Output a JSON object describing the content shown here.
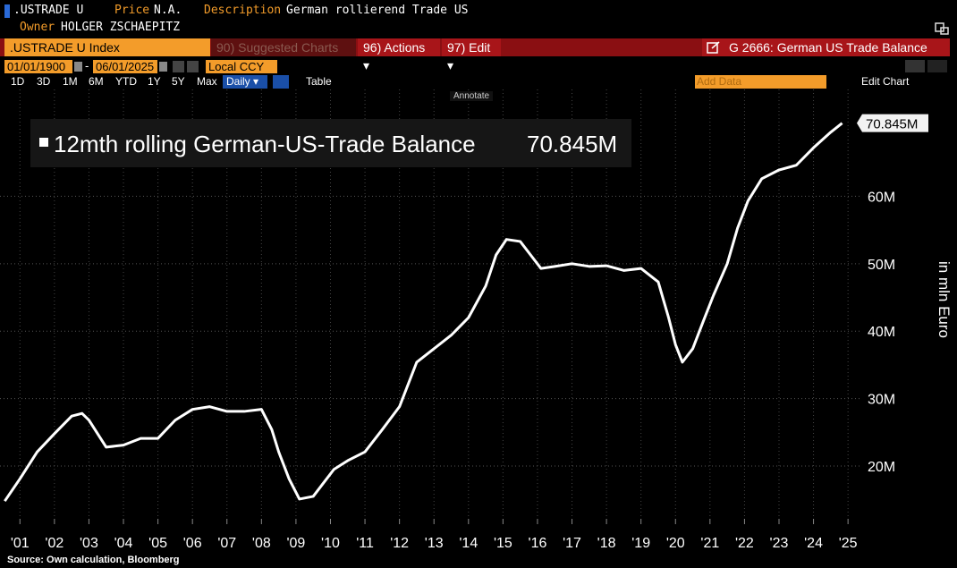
{
  "ui": {
    "ticker": ".USTRADE U",
    "price_label": "Price",
    "price": "N.A.",
    "description_label": "Description",
    "description": "German rollierend Trade US",
    "owner_label": "Owner",
    "owner": "HOLGER ZSCHAEPITZ",
    "security": ".USTRADE U Index",
    "suggested": "90) Suggested Charts",
    "actions": "96) Actions ▾",
    "edit": "97) Edit ▾",
    "chart_id": "G 2666: German US Trade Balance",
    "start_date": "01/01/1900",
    "date_sep": "-",
    "end_date": "06/01/2025",
    "currency": "Local CCY",
    "periods": [
      "1D",
      "3D",
      "1M",
      "6M",
      "YTD",
      "1Y",
      "5Y",
      "Max"
    ],
    "frequency": "Daily ▾",
    "table": "Table",
    "add_data": "Add Data",
    "edit_chart": "Edit Chart",
    "annotate": "Annotate"
  },
  "chart_data": {
    "type": "line",
    "ylabel": "in mln Euro",
    "source": "Source: Own calculation, Bloomberg",
    "x": [
      2001.06,
      2001.5,
      2002.0,
      2002.5,
      2003.0,
      2003.3,
      2003.5,
      2004.0,
      2004.5,
      2005.0,
      2005.5,
      2006.0,
      2006.5,
      2007.0,
      2007.5,
      2008.0,
      2008.5,
      2008.8,
      2009.0,
      2009.3,
      2009.6,
      2010.0,
      2010.3,
      2010.6,
      2011.0,
      2011.5,
      2012.0,
      2012.5,
      2013.0,
      2013.5,
      2014.0,
      2014.5,
      2015.0,
      2015.3,
      2015.6,
      2016.0,
      2016.3,
      2016.6,
      2017.0,
      2017.5,
      2018.0,
      2018.5,
      2019.0,
      2019.5,
      2020.0,
      2020.3,
      2020.5,
      2020.7,
      2021.0,
      2021.3,
      2021.6,
      2022.0,
      2022.3,
      2022.6,
      2023.0,
      2023.5,
      2024.0,
      2024.5,
      2025.0,
      2025.33
    ],
    "series": [
      {
        "name": "12mth rolling German-US-Trade Balance",
        "color": "#ffffff",
        "values": [
          14.8,
          18.1,
          22.1,
          24.8,
          27.4,
          27.8,
          26.8,
          22.8,
          23.1,
          24.1,
          24.1,
          26.8,
          28.4,
          28.8,
          28.1,
          28.1,
          28.4,
          25.4,
          22.1,
          18.1,
          15.1,
          15.5,
          17.5,
          19.5,
          20.8,
          22.1,
          25.4,
          28.8,
          35.4,
          37.4,
          39.4,
          42.0,
          46.7,
          51.3,
          53.6,
          53.3,
          51.3,
          49.3,
          49.6,
          50.0,
          49.6,
          49.7,
          49.0,
          49.3,
          47.3,
          42.0,
          38.0,
          35.4,
          37.4,
          41.4,
          45.3,
          50.0,
          55.3,
          59.3,
          62.6,
          63.9,
          64.6,
          67.2,
          69.5,
          70.845
        ],
        "value_labels": [
          null,
          null,
          null,
          null,
          null,
          null,
          null,
          null,
          null,
          null,
          null,
          null,
          null,
          null,
          null,
          null,
          null,
          null,
          null,
          null,
          null,
          null,
          null,
          null,
          null,
          null,
          null,
          null,
          null,
          null,
          null,
          null,
          null,
          null,
          null,
          null,
          null,
          null,
          null,
          null,
          null,
          null,
          null,
          null,
          null,
          null,
          null,
          null,
          null,
          null,
          null,
          null,
          null,
          null,
          null,
          null,
          null,
          null,
          null,
          "70.845M"
        ]
      }
    ],
    "xlim": [
      2001,
      2025.6
    ],
    "ylim": [
      12.4,
      75.8
    ],
    "xticks": [
      {
        "value": 2001.5,
        "label": "'01"
      },
      {
        "value": 2002.5,
        "label": "'02"
      },
      {
        "value": 2003.5,
        "label": "'03"
      },
      {
        "value": 2004.5,
        "label": "'04"
      },
      {
        "value": 2005.5,
        "label": "'05"
      },
      {
        "value": 2006.5,
        "label": "'06"
      },
      {
        "value": 2007.5,
        "label": "'07"
      },
      {
        "value": 2008.5,
        "label": "'08"
      },
      {
        "value": 2009.5,
        "label": "'09"
      },
      {
        "value": 2010.5,
        "label": "'10"
      },
      {
        "value": 2011.5,
        "label": "'11"
      },
      {
        "value": 2012.5,
        "label": "'12"
      },
      {
        "value": 2013.5,
        "label": "'13"
      },
      {
        "value": 2014.5,
        "label": "'14"
      },
      {
        "value": 2015.5,
        "label": "'15"
      },
      {
        "value": 2016.5,
        "label": "'16"
      },
      {
        "value": 2017.5,
        "label": "'17"
      },
      {
        "value": 2018.5,
        "label": "'18"
      },
      {
        "value": 2019.5,
        "label": "'19"
      },
      {
        "value": 2020.5,
        "label": "'20"
      },
      {
        "value": 2021.5,
        "label": "'21"
      },
      {
        "value": 2022.5,
        "label": "'22"
      },
      {
        "value": 2023.5,
        "label": "'23"
      },
      {
        "value": 2024.5,
        "label": "'24"
      },
      {
        "value": 2025.5,
        "label": "'25"
      }
    ],
    "yticks": [
      {
        "value": 20,
        "label": "20M"
      },
      {
        "value": 30,
        "label": "30M"
      },
      {
        "value": 40,
        "label": "40M"
      },
      {
        "value": 50,
        "label": "50M"
      },
      {
        "value": 60,
        "label": "60M"
      }
    ],
    "grid": true
  }
}
